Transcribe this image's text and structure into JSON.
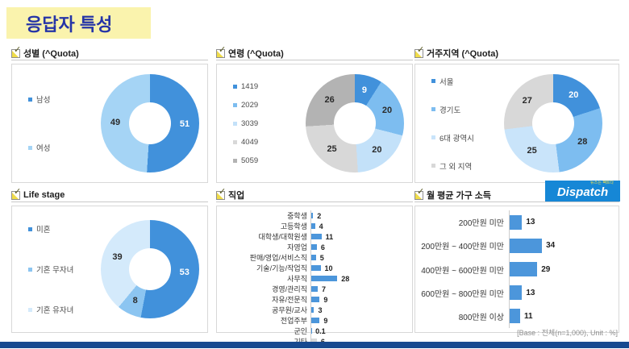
{
  "page": {
    "title": "응답자 특성",
    "footer": "[Base : 전체(n=1,000), Unit : %]",
    "title_color": "#2534A7",
    "title_bg": "#FAF3AD",
    "bottom_bar_color": "#17498F"
  },
  "logo": {
    "text": "Dispatch",
    "slogan": "뉴스는 팩트다",
    "bg_color": "#1687D6"
  },
  "chart_data": [
    {
      "id": "gender",
      "type": "donut",
      "title": "성별 (^Quota)",
      "labels": [
        "남성",
        "여성"
      ],
      "values": [
        51,
        49
      ],
      "colors": [
        "#4191DB",
        "#A5D4F5"
      ],
      "value_colors": [
        "#FFFFFF",
        "#2b2b2b"
      ],
      "unit": "%"
    },
    {
      "id": "age",
      "type": "donut",
      "title": "연령 (^Quota)",
      "labels": [
        "1419",
        "2029",
        "3039",
        "4049",
        "5059"
      ],
      "values": [
        9,
        20,
        20,
        25,
        26
      ],
      "colors": [
        "#4191DB",
        "#7DBDF0",
        "#C3E1F9",
        "#D8D8D8",
        "#B3B3B3"
      ],
      "value_colors": [
        "#FFFFFF",
        "#2b2b2b",
        "#2b2b2b",
        "#2b2b2b",
        "#2b2b2b"
      ],
      "unit": "%"
    },
    {
      "id": "region",
      "type": "donut",
      "title": "거주지역 (^Quota)",
      "labels": [
        "서울",
        "경기도",
        "6대 광역시",
        "그 외 지역"
      ],
      "values": [
        20,
        28,
        25,
        27
      ],
      "colors": [
        "#4191DB",
        "#7DBDF0",
        "#C9E4FA",
        "#D8D8D8"
      ],
      "value_colors": [
        "#FFFFFF",
        "#2b2b2b",
        "#2b2b2b",
        "#2b2b2b"
      ],
      "unit": "%"
    },
    {
      "id": "lifestage",
      "type": "donut",
      "title": "Life stage",
      "labels": [
        "미혼",
        "기혼 무자녀",
        "기혼 유자녀"
      ],
      "values": [
        53,
        8,
        39
      ],
      "colors": [
        "#4191DB",
        "#8CC5F1",
        "#D4EAFB"
      ],
      "value_colors": [
        "#FFFFFF",
        "#2b2b2b",
        "#2b2b2b"
      ],
      "unit": "%"
    },
    {
      "id": "occupation",
      "type": "bar",
      "title": "직업",
      "categories": [
        "중학생",
        "고등학생",
        "대학생/대학원생",
        "자영업",
        "판매/영업/서비스직",
        "기술/기능/작업직",
        "사무직",
        "경영/관리직",
        "자유/전문직",
        "공무원/교사",
        "전업주부",
        "군인",
        "기타"
      ],
      "values": [
        2,
        4,
        11,
        6,
        5,
        10,
        28,
        7,
        9,
        3,
        9,
        0.1,
        6
      ],
      "bar_color": "#4C96DB",
      "other_color": "#D8D8D8",
      "other_index": 12,
      "unit": "%"
    },
    {
      "id": "income",
      "type": "bar",
      "title": "월 평균 가구 소득",
      "categories": [
        "200만원 미만",
        "200만원 ~ 400만원 미만",
        "400만원 ~ 600만원 미만",
        "600만원 ~ 800만원 미만",
        "800만원 이상"
      ],
      "values": [
        13,
        34,
        29,
        13,
        11
      ],
      "bar_color": "#4C96DB",
      "unit": "%"
    }
  ]
}
